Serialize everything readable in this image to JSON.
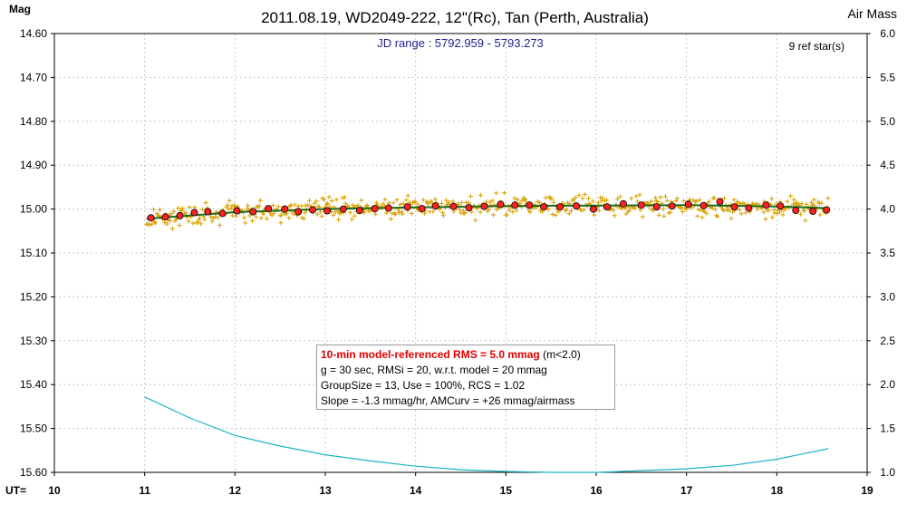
{
  "chart_data": {
    "type": "scatter",
    "title": "2011.08.19, WD2049-222, 12\"(Rc), Tan (Perth, Australia)",
    "ylabel_left": "Mag",
    "ylabel_right": "Air Mass",
    "xlabel": "UT=",
    "xlim": [
      10,
      19
    ],
    "ylim_left": [
      15.6,
      14.6
    ],
    "ylim_right": [
      1.0,
      6.0
    ],
    "x_ticks": [
      "10",
      "11",
      "12",
      "13",
      "14",
      "15",
      "16",
      "17",
      "18",
      "19"
    ],
    "y_left_ticks": [
      "14.60",
      "14.70",
      "14.80",
      "14.90",
      "15.00",
      "15.10",
      "15.20",
      "15.30",
      "15.40",
      "15.50",
      "15.60"
    ],
    "y_right_ticks": [
      "6.0",
      "5.5",
      "5.0",
      "4.5",
      "4.0",
      "3.5",
      "3.0",
      "2.5",
      "2.0",
      "1.5",
      "1.0"
    ],
    "grid": true,
    "jd_range": "JD range : 5792.959 - 5793.273",
    "ref_stars": "9 ref star(s)",
    "series": [
      {
        "name": "",
        "type": "scatter-cross",
        "color": "#d9a000",
        "x_start": 11.02,
        "x_end": 18.57,
        "count": 600,
        "mean_mag": 15.0,
        "scatter_mag": 0.02
      },
      {
        "name": "",
        "type": "scatter-dot",
        "color": "#ff2020",
        "points": [
          [
            11.07,
            15.02
          ],
          [
            11.23,
            15.018
          ],
          [
            11.39,
            15.015
          ],
          [
            11.55,
            15.008
          ],
          [
            11.7,
            15.006
          ],
          [
            11.86,
            15.01
          ],
          [
            12.02,
            15.004
          ],
          [
            12.2,
            15.006
          ],
          [
            12.37,
            14.999
          ],
          [
            12.55,
            15.0
          ],
          [
            12.7,
            15.006
          ],
          [
            12.86,
            15.002
          ],
          [
            13.02,
            15.004
          ],
          [
            13.2,
            15.0
          ],
          [
            13.38,
            15.003
          ],
          [
            13.55,
            14.999
          ],
          [
            13.7,
            14.998
          ],
          [
            13.91,
            14.995
          ],
          [
            14.07,
            14.999
          ],
          [
            14.22,
            14.993
          ],
          [
            14.42,
            14.994
          ],
          [
            14.59,
            14.997
          ],
          [
            14.76,
            14.994
          ],
          [
            14.94,
            14.989
          ],
          [
            15.1,
            14.991
          ],
          [
            15.26,
            14.991
          ],
          [
            15.42,
            14.995
          ],
          [
            15.6,
            14.995
          ],
          [
            15.78,
            14.993
          ],
          [
            15.97,
            15.0
          ],
          [
            16.12,
            14.995
          ],
          [
            16.3,
            14.988
          ],
          [
            16.5,
            14.991
          ],
          [
            16.67,
            14.995
          ],
          [
            16.84,
            14.993
          ],
          [
            17.02,
            14.989
          ],
          [
            17.19,
            14.992
          ],
          [
            17.37,
            14.983
          ],
          [
            17.53,
            14.995
          ],
          [
            17.69,
            14.998
          ],
          [
            17.88,
            14.991
          ],
          [
            18.04,
            14.993
          ],
          [
            18.21,
            15.003
          ],
          [
            18.4,
            15.005
          ],
          [
            18.55,
            15.002
          ]
        ]
      },
      {
        "name": "",
        "type": "line",
        "color": "#1a6d1a",
        "trend_mag": [
          [
            11.02,
            15.022
          ],
          [
            12.0,
            15.007
          ],
          [
            13.0,
            15.0
          ],
          [
            14.0,
            14.996
          ],
          [
            15.0,
            14.993
          ],
          [
            16.0,
            14.992
          ],
          [
            17.0,
            14.991
          ],
          [
            18.0,
            14.994
          ],
          [
            18.57,
            14.998
          ]
        ]
      },
      {
        "name": "",
        "type": "line",
        "color": "#1bb3c8",
        "axis": "right",
        "airmass": [
          [
            11.0,
            1.86
          ],
          [
            11.5,
            1.62
          ],
          [
            12.0,
            1.42
          ],
          [
            12.5,
            1.3
          ],
          [
            13.0,
            1.2
          ],
          [
            13.5,
            1.13
          ],
          [
            14.0,
            1.07
          ],
          [
            14.5,
            1.03
          ],
          [
            15.0,
            1.01
          ],
          [
            15.5,
            1.0
          ],
          [
            16.0,
            1.0
          ],
          [
            16.5,
            1.02
          ],
          [
            17.0,
            1.04
          ],
          [
            17.5,
            1.08
          ],
          [
            18.0,
            1.15
          ],
          [
            18.57,
            1.27
          ]
        ]
      }
    ]
  },
  "info_box": {
    "line1_red": "10-min model-referenced RMS = 5.0 mmag",
    "line1_rest": " (m<2.0)",
    "line2": "g = 30 sec, RMSi = 20, w.r.t. model = 20 mmag",
    "line3": "GroupSize = 13, Use = 100%, RCS = 1.02",
    "line4": "Slope = -1.3 mmag/hr, AMCurv = +26 mmag/airmass"
  }
}
